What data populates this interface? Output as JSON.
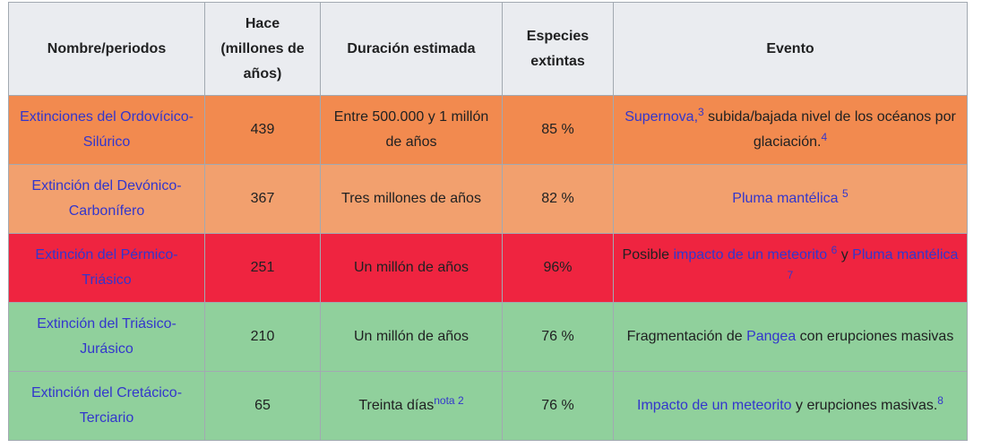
{
  "headers": [
    "Nombre/periodos",
    "Hace (millones de años)",
    "Duración estimada",
    "Especies extintas",
    "Evento"
  ],
  "rows": [
    {
      "name": "Extinciones del Ordovícico-Silúrico",
      "ago": "439",
      "duration": "Entre 500.000 y 1 millón de años",
      "duration_note": "",
      "species": "85 %",
      "color": "#f28a4f"
    },
    {
      "name": "Extinción del Devónico-Carbonífero",
      "ago": "367",
      "duration": "Tres millones de años",
      "duration_note": "",
      "species": "82 %",
      "color": "#f2a06e"
    },
    {
      "name": "Extinción del Pérmico-Triásico",
      "ago": "251",
      "duration": "Un millón de años",
      "duration_note": "",
      "species": "96%",
      "color": "#ef2440"
    },
    {
      "name": "Extinción del Triásico-Jurásico",
      "ago": "210",
      "duration": "Un millón de años",
      "duration_note": "",
      "species": "76 %",
      "color": "#90d09c"
    },
    {
      "name": "Extinción del Cretácico-Terciario",
      "ago": "65",
      "duration": "Treinta días",
      "duration_note": "nota 2",
      "species": "76 %",
      "color": "#90d09c"
    }
  ],
  "events": {
    "r1": {
      "link": "Supernova,",
      "ref1": "3",
      "text": " subida/bajada nivel de los océanos por glaciación.",
      "ref2": "4"
    },
    "r2": {
      "link": "Pluma mantélica",
      "ref": "5"
    },
    "r3": {
      "prefix": "Posible ",
      "link1": "impacto de un meteorito",
      "ref1": "6",
      "mid": " y ",
      "link2": "Pluma mantélica",
      "ref2": "7"
    },
    "r4": {
      "prefix": "Fragmentación de ",
      "link": "Pangea",
      "text": " con erupciones masivas"
    },
    "r5": {
      "link": "Impacto de un meteorito",
      "text": " y erupciones masivas.",
      "ref": "8"
    }
  }
}
